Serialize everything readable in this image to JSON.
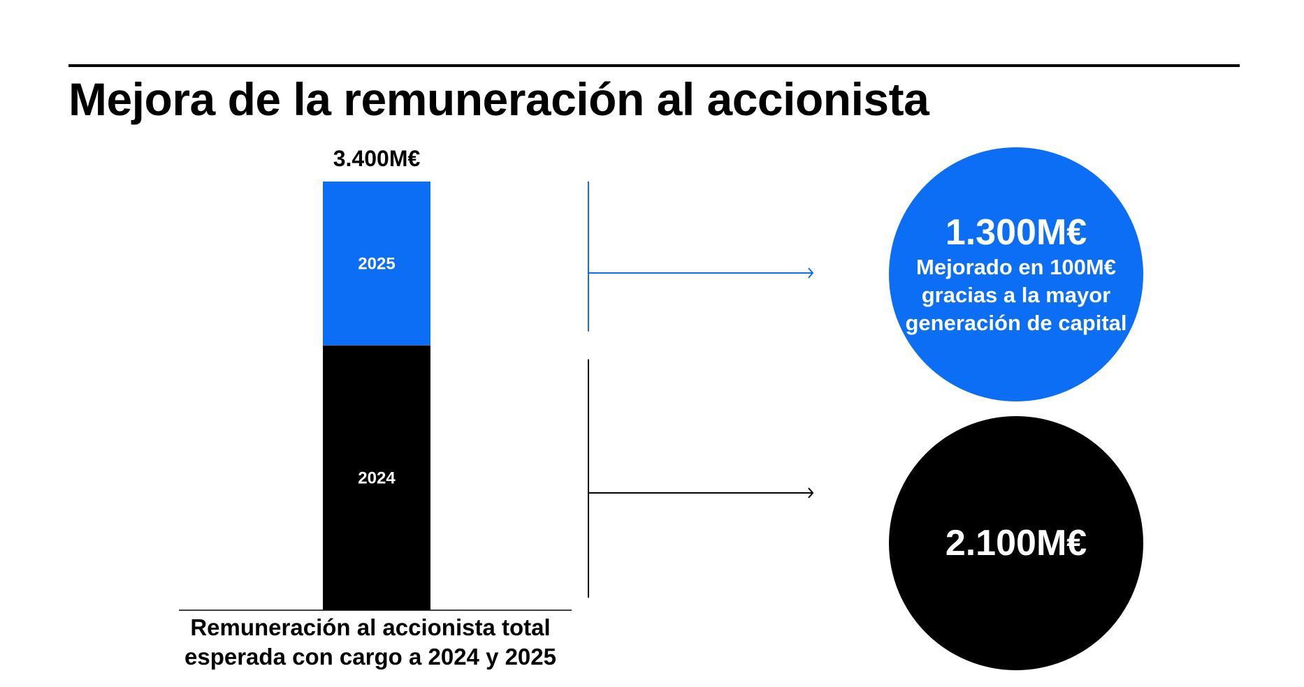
{
  "title": "Mejora de la remuneración al accionista",
  "colors": {
    "blue": "#0B6EF5",
    "black": "#000000",
    "white": "#ffffff"
  },
  "chart_data": {
    "type": "bar",
    "stacked": true,
    "categories": [
      "Remuneración al accionista total esperada con cargo a 2024 y 2025"
    ],
    "series": [
      {
        "name": "2024",
        "values": [
          2100
        ],
        "color": "#000000"
      },
      {
        "name": "2025",
        "values": [
          1300
        ],
        "color": "#0B6EF5"
      }
    ],
    "total_label": "3.400M€",
    "total": 3400,
    "xlabel": "Remuneración al accionista total esperada con cargo a 2024 y 2025",
    "grid": false
  },
  "callouts": [
    {
      "value": "1.300M€",
      "note": "Mejorado en 100M€ gracias a la mayor generación de capital",
      "color": "#0B6EF5"
    },
    {
      "value": "2.100M€",
      "note": "",
      "color": "#000000"
    }
  ]
}
